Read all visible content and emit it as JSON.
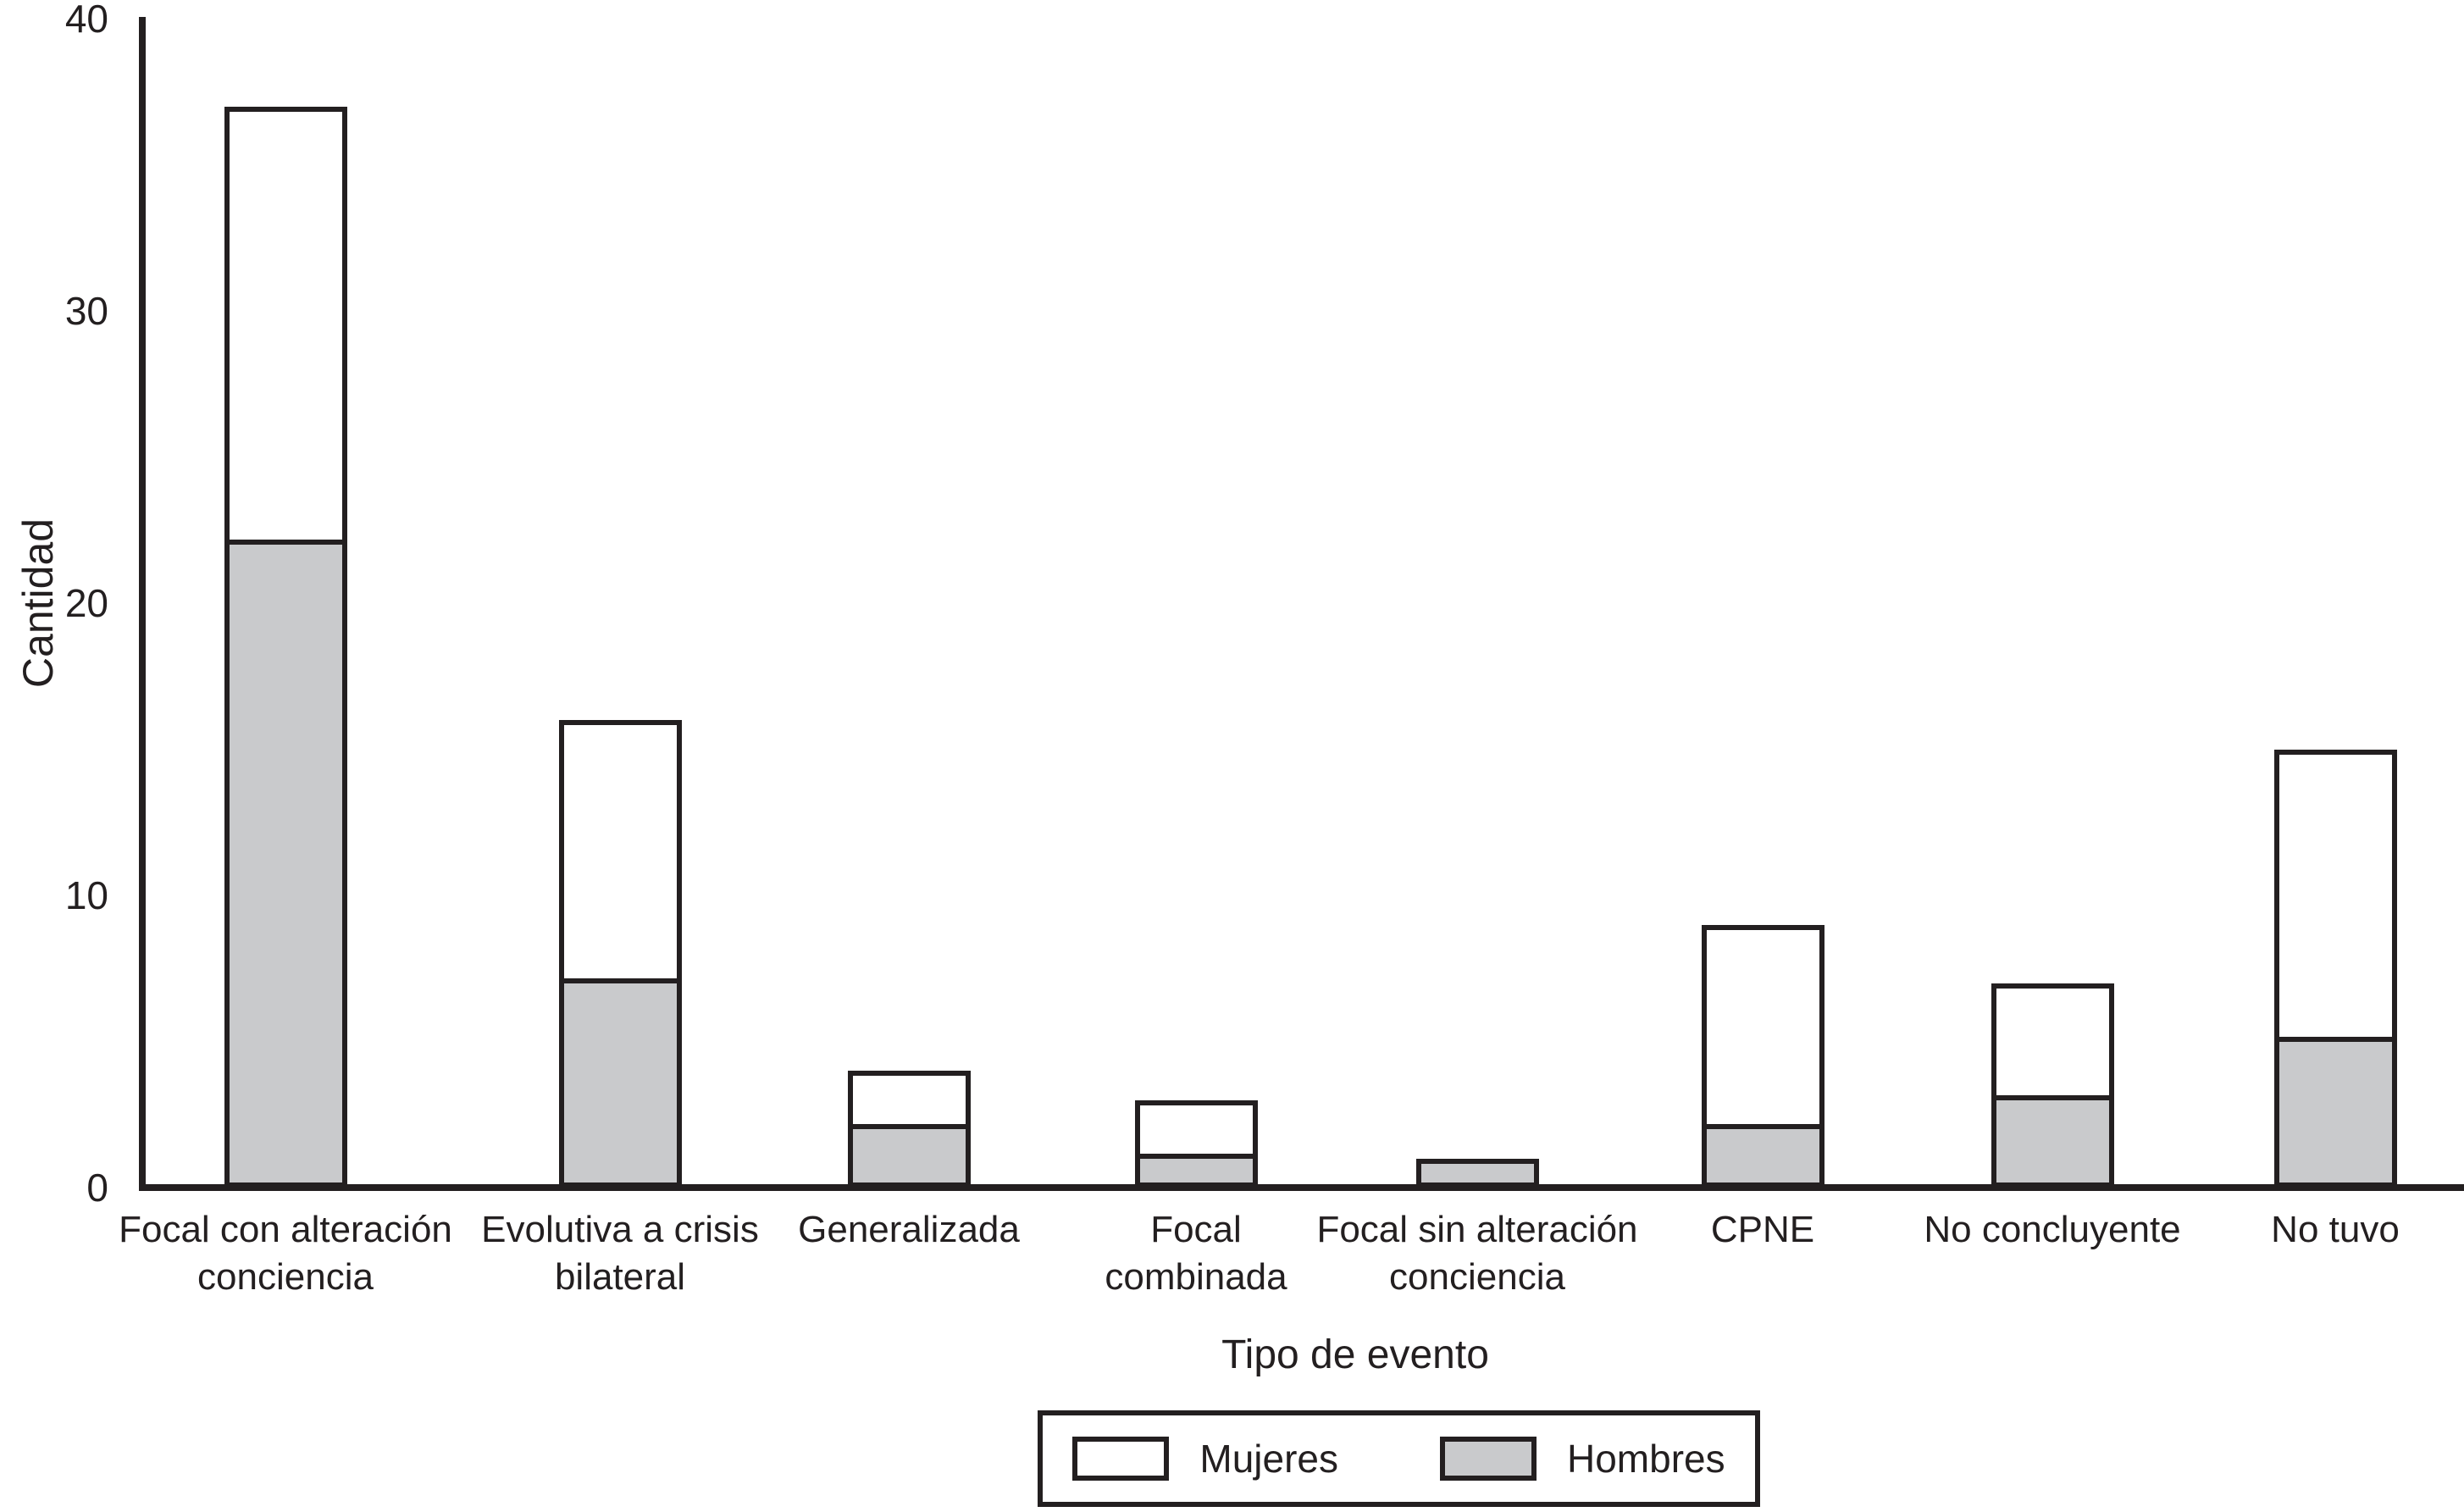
{
  "chart_data": {
    "type": "bar",
    "stacked": true,
    "title": "",
    "xlabel": "Tipo de evento",
    "ylabel": "Cantidad",
    "ylim": [
      0,
      40
    ],
    "yticks": [
      0,
      10,
      20,
      30,
      40
    ],
    "grid": false,
    "legend_position": "bottom-center",
    "categories": [
      "Focal con alteración conciencia",
      "Evolutiva a crisis bilateral",
      "Generalizada",
      "Focal combinada",
      "Focal sin alteración conciencia",
      "CPNE",
      "No concluyente",
      "No tuvo"
    ],
    "category_lines": [
      [
        "Focal con alteración",
        "conciencia"
      ],
      [
        "Evolutiva a crisis",
        "bilateral"
      ],
      [
        "Generalizada"
      ],
      [
        "Focal",
        "combinada"
      ],
      [
        "Focal sin alteración",
        "conciencia"
      ],
      [
        "CPNE"
      ],
      [
        "No concluyente"
      ],
      [
        "No tuvo"
      ]
    ],
    "series": [
      {
        "name": "Mujeres",
        "color": "#ffffff",
        "values": [
          15,
          9,
          2,
          2,
          0,
          7,
          4,
          10
        ]
      },
      {
        "name": "Hombres",
        "color": "#c9cacc",
        "values": [
          22,
          7,
          2,
          1,
          1,
          2,
          3,
          5
        ]
      }
    ],
    "totals": [
      37,
      16,
      4,
      3,
      1,
      9,
      7,
      15
    ]
  },
  "colors": {
    "ink": "#231f20",
    "background": "#ffffff",
    "mujeres_fill": "#ffffff",
    "hombres_fill": "#c9cacc"
  }
}
